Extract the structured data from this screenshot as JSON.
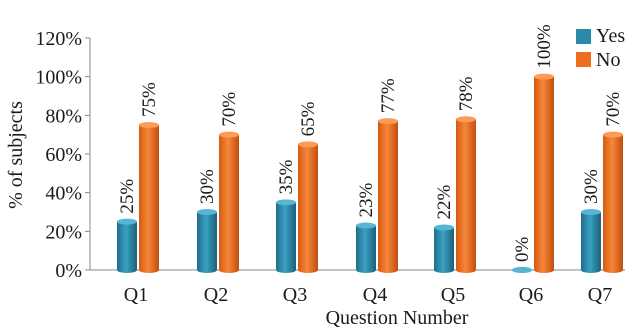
{
  "chart_data": {
    "type": "bar",
    "xlabel": "Question Number",
    "ylabel": "% of subjects",
    "ylim": [
      0,
      120
    ],
    "y_ticks": [
      0,
      20,
      40,
      60,
      80,
      100,
      120
    ],
    "y_tick_suffix": "%",
    "grid": false,
    "legend_position": "top-right",
    "categories": [
      "Q1",
      "Q2",
      "Q3",
      "Q4",
      "Q5",
      "Q6",
      "Q7"
    ],
    "series": [
      {
        "name": "Yes",
        "color": "#2b8aa8",
        "values": [
          25,
          30,
          35,
          23,
          22,
          0,
          30
        ]
      },
      {
        "name": "No",
        "color": "#ee6d20",
        "values": [
          75,
          70,
          65,
          77,
          78,
          100,
          70
        ]
      }
    ],
    "data_label_suffix": "%"
  }
}
